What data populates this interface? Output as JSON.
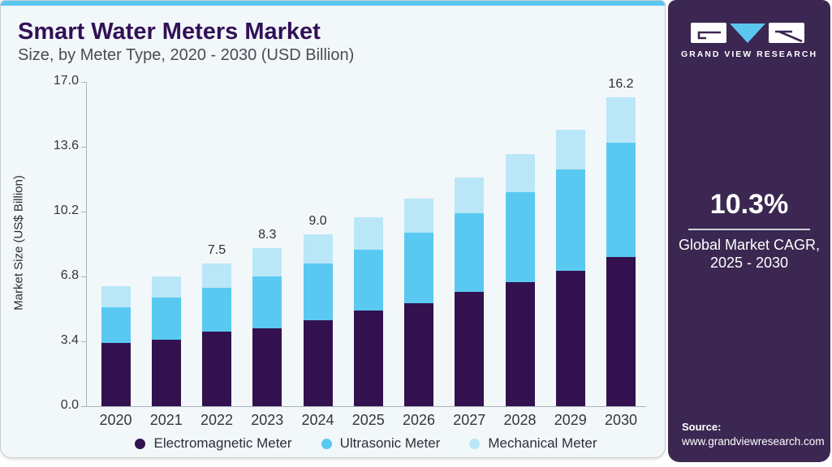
{
  "header": {
    "title": "Smart Water Meters Market",
    "subtitle": "Size, by Meter Type, 2020 - 2030 (USD Billion)"
  },
  "chart_data": {
    "type": "bar",
    "stacked": true,
    "title": "Smart Water Meters Market Size, by Meter Type, 2020 - 2030 (USD Billion)",
    "categories": [
      "2020",
      "2021",
      "2022",
      "2023",
      "2024",
      "2025",
      "2026",
      "2027",
      "2028",
      "2029",
      "2030"
    ],
    "series": [
      {
        "name": "Electromagnetic Meter",
        "color": "#33114e",
        "values": [
          3.3,
          3.5,
          3.9,
          4.1,
          4.5,
          5.0,
          5.4,
          6.0,
          6.5,
          7.1,
          7.8
        ]
      },
      {
        "name": "Ultrasonic Meter",
        "color": "#5ac9f1",
        "values": [
          1.9,
          2.2,
          2.3,
          2.7,
          3.0,
          3.2,
          3.7,
          4.1,
          4.7,
          5.3,
          6.0
        ]
      },
      {
        "name": "Mechanical Meter",
        "color": "#b9e7f8",
        "values": [
          1.1,
          1.1,
          1.3,
          1.5,
          1.5,
          1.7,
          1.8,
          1.9,
          2.0,
          2.1,
          2.4
        ]
      }
    ],
    "totals": [
      6.3,
      6.8,
      7.5,
      8.3,
      9.0,
      9.9,
      10.9,
      12.0,
      13.2,
      14.5,
      16.2
    ],
    "total_labels": [
      "",
      "",
      "7.5",
      "8.3",
      "9.0",
      "",
      "",
      "",
      "",
      "",
      "16.2"
    ],
    "xlabel": "",
    "ylabel": "Market Size (US$ Billion)",
    "ylim": [
      0,
      17
    ],
    "yticks": [
      0.0,
      3.4,
      6.8,
      10.2,
      13.6,
      17.0
    ],
    "ytick_labels": [
      "0.0",
      "3.4",
      "6.8",
      "10.2",
      "13.6",
      "17.0"
    ],
    "grid": false,
    "legend_position": "bottom"
  },
  "sidebar": {
    "brand": "GRAND VIEW RESEARCH",
    "cagr_value": "10.3%",
    "cagr_label_line1": "Global Market CAGR,",
    "cagr_label_line2": "2025 - 2030",
    "source_label": "Source:",
    "source_url": "www.grandviewresearch.com"
  },
  "colors": {
    "accent_blue": "#5bc6ef",
    "panel_purple": "#3b2751",
    "title_purple": "#321057",
    "card_background": "#f2f7fa",
    "axis_line": "#a9b3bc",
    "bar_dark": "#33114e",
    "bar_mid": "#5ac9f1",
    "bar_light": "#b9e7f8"
  }
}
